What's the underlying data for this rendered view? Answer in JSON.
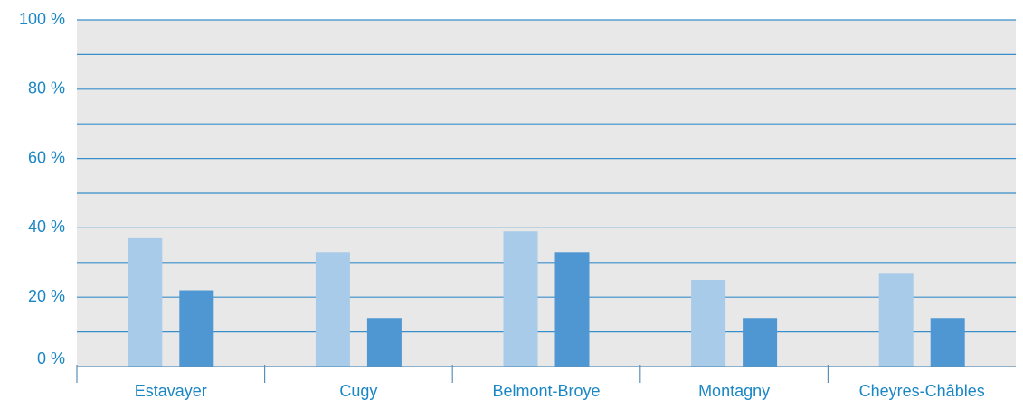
{
  "chart_data": {
    "type": "bar",
    "categories": [
      "Estavayer",
      "Cugy",
      "Belmont-Broye",
      "Montagny",
      "Cheyres-Châbles"
    ],
    "series": [
      {
        "values": [
          37,
          33,
          39,
          25,
          27
        ],
        "color": "#a7cbe8"
      },
      {
        "values": [
          22,
          14,
          33,
          14,
          14
        ],
        "color": "#4f97d3"
      }
    ],
    "y_ticks": [
      {
        "value": 0,
        "label": "0 %"
      },
      {
        "value": 20,
        "label": "20 %"
      },
      {
        "value": 40,
        "label": "40 %"
      },
      {
        "value": 60,
        "label": "60 %"
      },
      {
        "value": 80,
        "label": "80 %"
      },
      {
        "value": 100,
        "label": "100 %"
      }
    ],
    "ylim": [
      0,
      100
    ],
    "grid_step": 10,
    "grid": true,
    "colors": {
      "plot_background": "#e8e8e9",
      "gridline": "#3a8ec9",
      "text": "#1a86c4",
      "axis": "#5a8fb8"
    }
  }
}
